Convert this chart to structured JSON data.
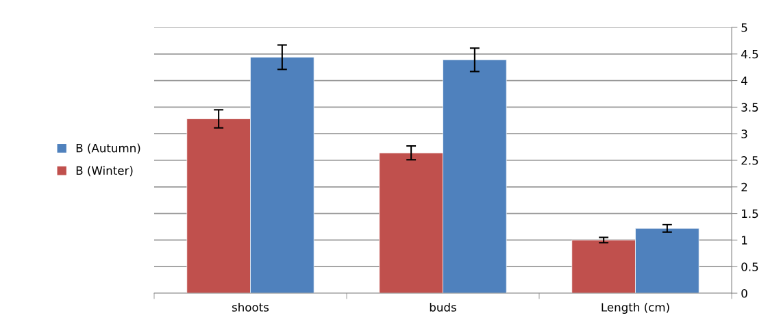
{
  "chart_data": {
    "type": "bar",
    "categories": [
      "shoots",
      "buds",
      "Length (cm)"
    ],
    "series": [
      {
        "name": "B (Winter)",
        "color": "#c0504d",
        "values": [
          3.28,
          2.64,
          1.0
        ],
        "errors": [
          0.17,
          0.13,
          0.05
        ]
      },
      {
        "name": "B (Autumn)",
        "color": "#4f81bd",
        "values": [
          4.44,
          4.39,
          1.22
        ],
        "errors": [
          0.23,
          0.22,
          0.07
        ]
      }
    ],
    "ylim": [
      0,
      5
    ],
    "yticks": [
      0,
      0.5,
      1,
      1.5,
      2,
      2.5,
      3,
      3.5,
      4,
      4.5,
      5
    ],
    "grid": "y",
    "legend": "left"
  }
}
